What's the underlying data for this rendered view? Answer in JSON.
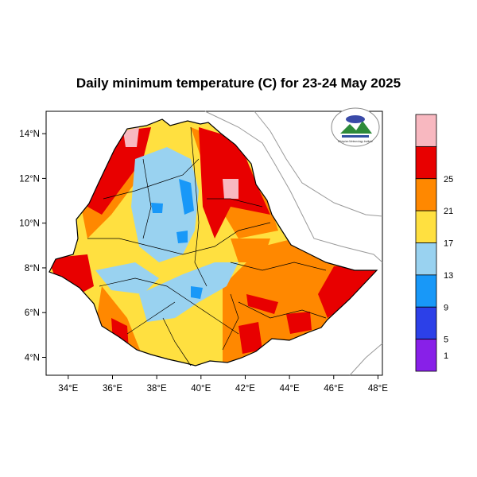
{
  "title": "Daily minimum temperature (C) for 23-24 May 2025",
  "map": {
    "lon_range": [
      33,
      48.2
    ],
    "lat_range": [
      3.2,
      15
    ],
    "lon_ticks": [
      "34°E",
      "36°E",
      "38°E",
      "40°E",
      "42°E",
      "44°E",
      "46°E",
      "48°E"
    ],
    "lat_ticks": [
      "4°N",
      "6°N",
      "8°N",
      "10°N",
      "12°N",
      "14°N"
    ],
    "logo_text": "Ethiopian Meteorology Institute"
  },
  "colorbar": {
    "bins": [
      {
        "color": "#f8b8c0"
      },
      {
        "color": "#e80000",
        "label": "25"
      },
      {
        "color": "#ff8800",
        "label": "21"
      },
      {
        "color": "#ffe040",
        "label": "17"
      },
      {
        "color": "#99d2f0",
        "label": "13"
      },
      {
        "color": "#1898f8",
        "label": "9"
      },
      {
        "color": "#2c40e8",
        "label": "5"
      },
      {
        "color": "#8820e8",
        "label": "1"
      }
    ]
  }
}
